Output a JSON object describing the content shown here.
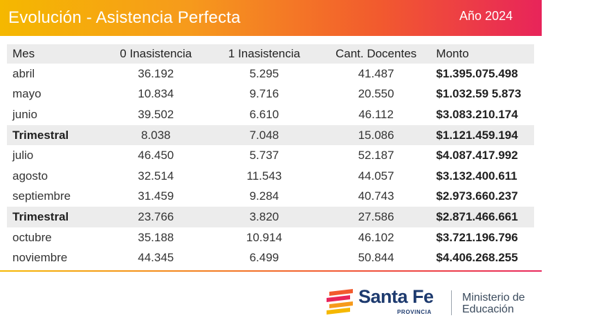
{
  "header": {
    "title": "Evolución - Asistencia Perfecta",
    "year": "Año 2024",
    "gradient_colors": [
      "#f5b800",
      "#f25a2e",
      "#e8245a"
    ]
  },
  "table": {
    "columns": [
      "Mes",
      "0 Inasistencia",
      "1 Inasistencia",
      "Cant. Docentes",
      "Monto"
    ],
    "rows": [
      {
        "mes": "abril",
        "cero": "36.192",
        "uno": "5.295",
        "docentes": "41.487",
        "monto": "$1.395.075.498",
        "trimestral": false
      },
      {
        "mes": "mayo",
        "cero": "10.834",
        "uno": "9.716",
        "docentes": "20.550",
        "monto": "$1.032.59 5.873",
        "trimestral": false
      },
      {
        "mes": "junio",
        "cero": "39.502",
        "uno": "6.610",
        "docentes": "46.112",
        "monto": "$3.083.210.174",
        "trimestral": false
      },
      {
        "mes": "Trimestral",
        "cero": "8.038",
        "uno": "7.048",
        "docentes": "15.086",
        "monto": "$1.121.459.194",
        "trimestral": true
      },
      {
        "mes": "julio",
        "cero": "46.450",
        "uno": "5.737",
        "docentes": "52.187",
        "monto": "$4.087.417.992",
        "trimestral": false
      },
      {
        "mes": "agosto",
        "cero": "32.514",
        "uno": "11.543",
        "docentes": "44.057",
        "monto": "$3.132.400.611",
        "trimestral": false
      },
      {
        "mes": "septiembre",
        "cero": "31.459",
        "uno": "9.284",
        "docentes": "40.743",
        "monto": "$2.973.660.237",
        "trimestral": false
      },
      {
        "mes": "Trimestral",
        "cero": "23.766",
        "uno": "3.820",
        "docentes": "27.586",
        "monto": "$2.871.466.661",
        "trimestral": true
      },
      {
        "mes": "octubre",
        "cero": "35.188",
        "uno": "10.914",
        "docentes": "46.102",
        "monto": "$3.721.196.796",
        "trimestral": false
      },
      {
        "mes": "noviembre",
        "cero": "44.345",
        "uno": "6.499",
        "docentes": "50.844",
        "monto": "$4.406.268.255",
        "trimestral": false
      }
    ]
  },
  "footer": {
    "brand": "Santa Fe",
    "brand_sub": "PROVINCIA",
    "ministry_line1": "Ministerio de",
    "ministry_line2": "Educación",
    "logo_icon": "santa-fe-stripes-logo",
    "brand_color": "#1d3a6e"
  }
}
